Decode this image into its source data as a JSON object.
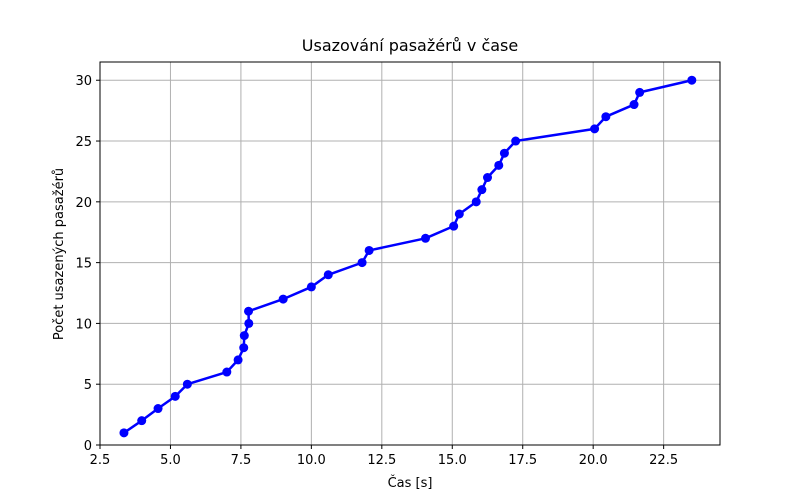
{
  "chart_data": {
    "type": "line",
    "title": "Usazování pasažérů v čase",
    "xlabel": "Čas [s]",
    "ylabel": "Počet usazených pasažérů",
    "xlim": [
      2.5,
      24.5
    ],
    "ylim": [
      0,
      31.5
    ],
    "xticks": [
      "2.5",
      "5.0",
      "7.5",
      "10.0",
      "12.5",
      "15.0",
      "17.5",
      "20.0",
      "22.5"
    ],
    "yticks": [
      "0",
      "5",
      "10",
      "15",
      "20",
      "25",
      "30"
    ],
    "grid": true,
    "series": [
      {
        "color": "#0000ff",
        "marker": "circle",
        "x": [
          3.35,
          3.98,
          4.56,
          5.17,
          5.6,
          7.0,
          7.4,
          7.6,
          7.62,
          7.78,
          7.77,
          9.0,
          10.0,
          10.6,
          11.8,
          12.05,
          14.05,
          15.05,
          15.25,
          15.85,
          16.05,
          16.25,
          16.65,
          16.85,
          17.25,
          20.05,
          20.45,
          21.45,
          21.65,
          23.5
        ],
        "y": [
          1,
          2,
          3,
          4,
          5,
          6,
          7,
          8,
          9,
          10,
          11,
          12,
          13,
          14,
          15,
          16,
          17,
          18,
          19,
          20,
          21,
          22,
          23,
          24,
          25,
          26,
          27,
          28,
          29,
          30
        ]
      }
    ]
  }
}
